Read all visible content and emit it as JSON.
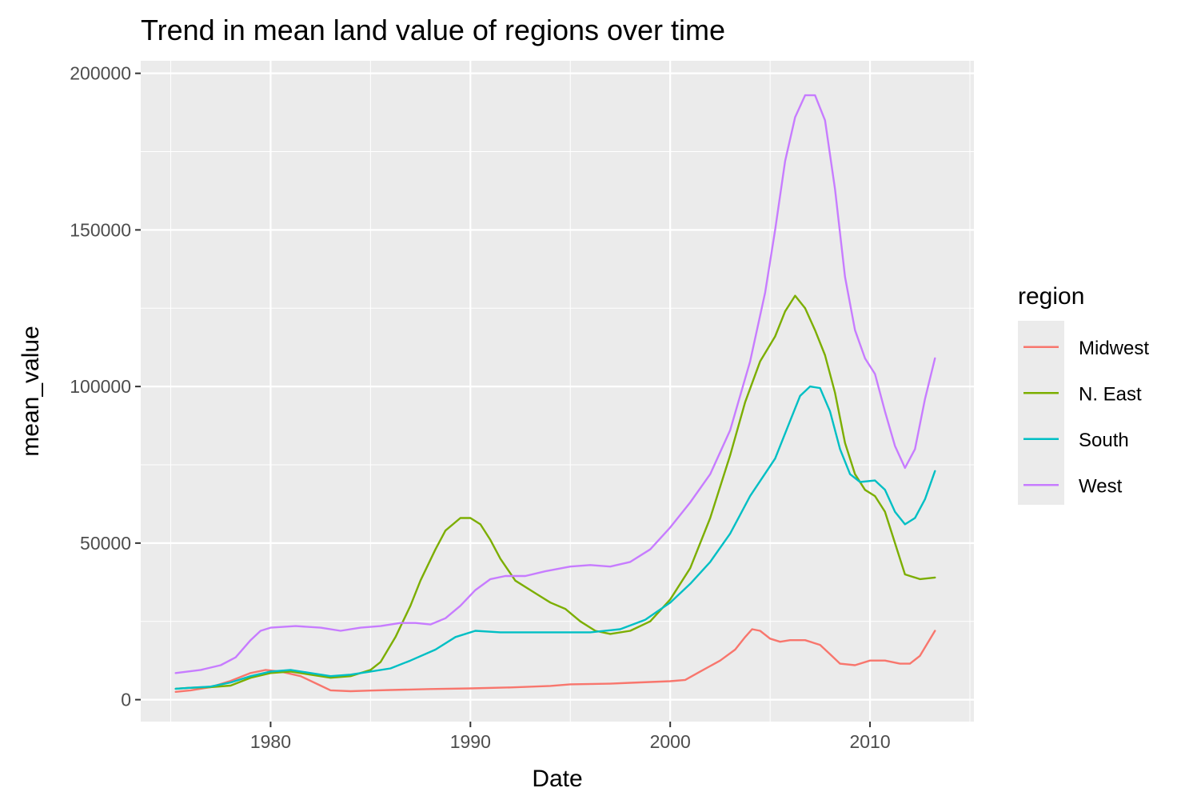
{
  "chart_data": {
    "type": "line",
    "title": "Trend in mean land value of regions over time",
    "xlabel": "Date",
    "ylabel": "mean_value",
    "xlim": [
      1973.5,
      2015.2
    ],
    "ylim": [
      -7000,
      204000
    ],
    "x_ticks": [
      1980,
      1990,
      2000,
      2010
    ],
    "x_tick_labels": [
      "1980",
      "1990",
      "2000",
      "2010"
    ],
    "y_ticks": [
      0,
      50000,
      100000,
      150000,
      200000
    ],
    "y_tick_labels": [
      "0",
      "50000",
      "100000",
      "150000",
      "200000"
    ],
    "grid": true,
    "legend": {
      "title": "region",
      "position": "right"
    },
    "series": [
      {
        "name": "Midwest",
        "color": "#F8766D",
        "points": [
          [
            1975.25,
            2500
          ],
          [
            1976,
            3000
          ],
          [
            1977,
            4000
          ],
          [
            1978,
            6000
          ],
          [
            1979,
            8500
          ],
          [
            1979.75,
            9500
          ],
          [
            1980.5,
            9000
          ],
          [
            1981.5,
            7500
          ],
          [
            1982.5,
            4500
          ],
          [
            1983,
            3000
          ],
          [
            1984,
            2700
          ],
          [
            1985,
            2900
          ],
          [
            1986,
            3100
          ],
          [
            1988,
            3400
          ],
          [
            1990,
            3600
          ],
          [
            1992,
            3900
          ],
          [
            1994,
            4400
          ],
          [
            1995,
            4900
          ],
          [
            1997,
            5100
          ],
          [
            1998,
            5400
          ],
          [
            2000,
            5900
          ],
          [
            2000.75,
            6300
          ],
          [
            2001.5,
            9000
          ],
          [
            2002.5,
            12500
          ],
          [
            2003.25,
            16000
          ],
          [
            2003.75,
            20000
          ],
          [
            2004.1,
            22500
          ],
          [
            2004.5,
            22000
          ],
          [
            2005,
            19500
          ],
          [
            2005.5,
            18500
          ],
          [
            2006,
            19000
          ],
          [
            2006.75,
            19000
          ],
          [
            2007.5,
            17500
          ],
          [
            2008,
            14500
          ],
          [
            2008.5,
            11500
          ],
          [
            2009.25,
            11000
          ],
          [
            2010,
            12500
          ],
          [
            2010.75,
            12500
          ],
          [
            2011.5,
            11500
          ],
          [
            2012,
            11500
          ],
          [
            2012.5,
            14000
          ],
          [
            2013.25,
            22000
          ]
        ]
      },
      {
        "name": "N. East",
        "color": "#7CAE00",
        "points": [
          [
            1975.25,
            3500
          ],
          [
            1976,
            3800
          ],
          [
            1977,
            4000
          ],
          [
            1978,
            4500
          ],
          [
            1979,
            7000
          ],
          [
            1980,
            8500
          ],
          [
            1981,
            9000
          ],
          [
            1982,
            8000
          ],
          [
            1983,
            7000
          ],
          [
            1984,
            7500
          ],
          [
            1985,
            9500
          ],
          [
            1985.5,
            12000
          ],
          [
            1986.25,
            20000
          ],
          [
            1987,
            30000
          ],
          [
            1987.5,
            38000
          ],
          [
            1988.25,
            48000
          ],
          [
            1988.75,
            54000
          ],
          [
            1989.5,
            58000
          ],
          [
            1990,
            58000
          ],
          [
            1990.5,
            56000
          ],
          [
            1991,
            51000
          ],
          [
            1991.5,
            45000
          ],
          [
            1992.25,
            38000
          ],
          [
            1993.25,
            34000
          ],
          [
            1994,
            31000
          ],
          [
            1994.75,
            29000
          ],
          [
            1995.5,
            25000
          ],
          [
            1996.25,
            22000
          ],
          [
            1997,
            21000
          ],
          [
            1998,
            22000
          ],
          [
            1999,
            25000
          ],
          [
            2000,
            32000
          ],
          [
            2001,
            42000
          ],
          [
            2002,
            58000
          ],
          [
            2003,
            78000
          ],
          [
            2003.75,
            95000
          ],
          [
            2004.5,
            108000
          ],
          [
            2005.25,
            116000
          ],
          [
            2005.75,
            124000
          ],
          [
            2006.25,
            129000
          ],
          [
            2006.75,
            125000
          ],
          [
            2007.25,
            118000
          ],
          [
            2007.75,
            110000
          ],
          [
            2008.25,
            98000
          ],
          [
            2008.75,
            82000
          ],
          [
            2009.25,
            72000
          ],
          [
            2009.75,
            67000
          ],
          [
            2010.25,
            65000
          ],
          [
            2010.75,
            60000
          ],
          [
            2011.25,
            50000
          ],
          [
            2011.75,
            40000
          ],
          [
            2012.5,
            38500
          ],
          [
            2013.25,
            39000
          ]
        ]
      },
      {
        "name": "South",
        "color": "#00BFC4",
        "points": [
          [
            1975.25,
            3500
          ],
          [
            1976,
            3800
          ],
          [
            1977,
            4200
          ],
          [
            1978,
            5500
          ],
          [
            1979,
            7500
          ],
          [
            1980,
            9000
          ],
          [
            1981,
            9500
          ],
          [
            1982,
            8500
          ],
          [
            1983,
            7500
          ],
          [
            1984,
            8000
          ],
          [
            1985,
            9000
          ],
          [
            1986,
            10000
          ],
          [
            1987,
            12500
          ],
          [
            1988.25,
            16000
          ],
          [
            1989.25,
            20000
          ],
          [
            1990.25,
            22000
          ],
          [
            1991.5,
            21500
          ],
          [
            1993,
            21500
          ],
          [
            1994.5,
            21500
          ],
          [
            1996,
            21500
          ],
          [
            1997.5,
            22500
          ],
          [
            1998.75,
            25500
          ],
          [
            2000,
            31000
          ],
          [
            2001,
            37000
          ],
          [
            2002,
            44000
          ],
          [
            2003,
            53000
          ],
          [
            2004,
            65000
          ],
          [
            2005.25,
            77000
          ],
          [
            2006,
            89000
          ],
          [
            2006.5,
            97000
          ],
          [
            2007,
            100000
          ],
          [
            2007.5,
            99500
          ],
          [
            2008,
            92000
          ],
          [
            2008.5,
            80000
          ],
          [
            2009,
            72000
          ],
          [
            2009.5,
            69500
          ],
          [
            2010.25,
            70000
          ],
          [
            2010.75,
            67000
          ],
          [
            2011.25,
            60000
          ],
          [
            2011.75,
            56000
          ],
          [
            2012.25,
            58000
          ],
          [
            2012.75,
            64000
          ],
          [
            2013.25,
            73000
          ]
        ]
      },
      {
        "name": "West",
        "color": "#C77CFF",
        "points": [
          [
            1975.25,
            8500
          ],
          [
            1976.5,
            9500
          ],
          [
            1977.5,
            11000
          ],
          [
            1978.25,
            13500
          ],
          [
            1979,
            19000
          ],
          [
            1979.5,
            22000
          ],
          [
            1980,
            23000
          ],
          [
            1981.25,
            23500
          ],
          [
            1982.5,
            23000
          ],
          [
            1983.5,
            22000
          ],
          [
            1984.5,
            23000
          ],
          [
            1985.5,
            23500
          ],
          [
            1986.5,
            24500
          ],
          [
            1987.25,
            24500
          ],
          [
            1988,
            24000
          ],
          [
            1988.75,
            26000
          ],
          [
            1989.5,
            30000
          ],
          [
            1990.25,
            35000
          ],
          [
            1991,
            38500
          ],
          [
            1991.75,
            39500
          ],
          [
            1992.75,
            39500
          ],
          [
            1993.75,
            41000
          ],
          [
            1995,
            42500
          ],
          [
            1996,
            43000
          ],
          [
            1997,
            42500
          ],
          [
            1998,
            44000
          ],
          [
            1999,
            48000
          ],
          [
            2000,
            55000
          ],
          [
            2001,
            63000
          ],
          [
            2002,
            72000
          ],
          [
            2003,
            86000
          ],
          [
            2004,
            108000
          ],
          [
            2004.75,
            130000
          ],
          [
            2005.25,
            150000
          ],
          [
            2005.75,
            172000
          ],
          [
            2006.25,
            186000
          ],
          [
            2006.75,
            193000
          ],
          [
            2007.25,
            193000
          ],
          [
            2007.75,
            185000
          ],
          [
            2008.25,
            163000
          ],
          [
            2008.75,
            135000
          ],
          [
            2009.25,
            118000
          ],
          [
            2009.75,
            109000
          ],
          [
            2010.25,
            104000
          ],
          [
            2010.75,
            92000
          ],
          [
            2011.25,
            81000
          ],
          [
            2011.75,
            74000
          ],
          [
            2012.25,
            80000
          ],
          [
            2012.75,
            96000
          ],
          [
            2013.25,
            109000
          ]
        ]
      }
    ]
  }
}
